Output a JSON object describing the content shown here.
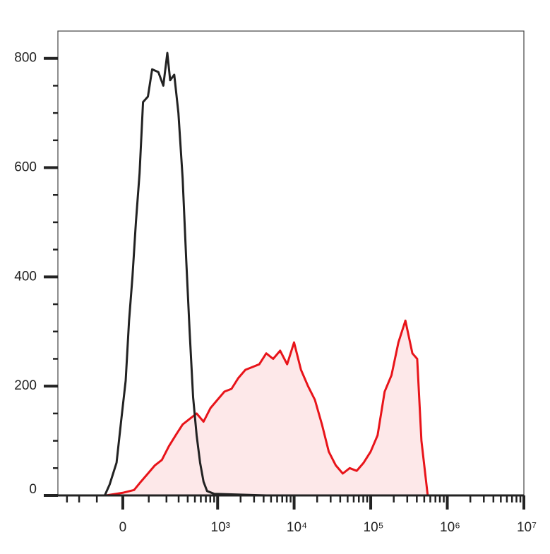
{
  "chart_data": {
    "type": "histogram-overlay",
    "xscale": "arcsinh",
    "xlim": [
      -400,
      10000000
    ],
    "ylim": [
      0,
      850
    ],
    "yticks": [
      0,
      200,
      400,
      600,
      800
    ],
    "yminor_ticks": [
      50,
      100,
      150,
      250,
      300,
      350,
      450,
      500,
      550,
      650,
      700,
      750
    ],
    "xticks": [
      0,
      {
        "value": 1000,
        "label": "10³"
      },
      {
        "value": 10000,
        "label": "10⁴"
      },
      {
        "value": 100000,
        "label": "10⁵"
      },
      {
        "value": 1000000,
        "label": "10⁶"
      },
      {
        "value": 10000000,
        "label": "10⁷"
      }
    ],
    "xminor_ticks": [
      -300,
      -200,
      -100,
      100,
      200,
      300,
      400,
      500,
      600,
      700,
      800,
      900,
      2000,
      3000,
      4000,
      5000,
      6000,
      7000,
      8000,
      9000,
      20000,
      30000,
      40000,
      50000,
      60000,
      70000,
      80000,
      90000,
      200000,
      300000,
      400000,
      500000,
      600000,
      700000,
      800000,
      900000,
      2000000,
      3000000,
      4000000,
      5000000,
      6000000,
      7000000,
      8000000,
      9000000
    ],
    "series": [
      {
        "color": "#e8141a",
        "fill": "#fde8e9",
        "x": [
          -61,
          2,
          40,
          66,
          96,
          130,
          170,
          217,
          272,
          341,
          425,
          528,
          652,
          806,
          996,
          1230,
          1520,
          1870,
          2310,
          2850,
          3510,
          4330,
          5330,
          6580,
          8110,
          9990,
          12300,
          15200,
          18700,
          23100,
          28400,
          35000,
          43200,
          53200,
          65600,
          80900,
          99700,
          123000,
          152000,
          187000,
          230000,
          284000,
          350000,
          405000,
          460000,
          555000
        ],
        "values": [
          0,
          5,
          10,
          25,
          40,
          55,
          65,
          90,
          110,
          130,
          140,
          150,
          135,
          160,
          175,
          190,
          195,
          215,
          230,
          235,
          240,
          260,
          250,
          265,
          240,
          280,
          230,
          200,
          175,
          130,
          80,
          55,
          40,
          50,
          45,
          60,
          80,
          110,
          190,
          220,
          280,
          320,
          260,
          250,
          100,
          0
        ]
      },
      {
        "color": "#222222",
        "x": [
          -66,
          -47,
          -22,
          -5,
          10,
          22,
          34,
          47,
          61,
          75,
          96,
          116,
          149,
          179,
          206,
          227,
          260,
          298,
          341,
          382,
          425,
          473,
          528,
          587,
          652,
          726,
          897,
          1520,
          4330
        ],
        "values": [
          0,
          20,
          60,
          140,
          210,
          320,
          400,
          500,
          590,
          720,
          730,
          780,
          775,
          750,
          810,
          760,
          770,
          700,
          580,
          430,
          300,
          180,
          110,
          60,
          25,
          8,
          3,
          2,
          0
        ]
      }
    ]
  }
}
